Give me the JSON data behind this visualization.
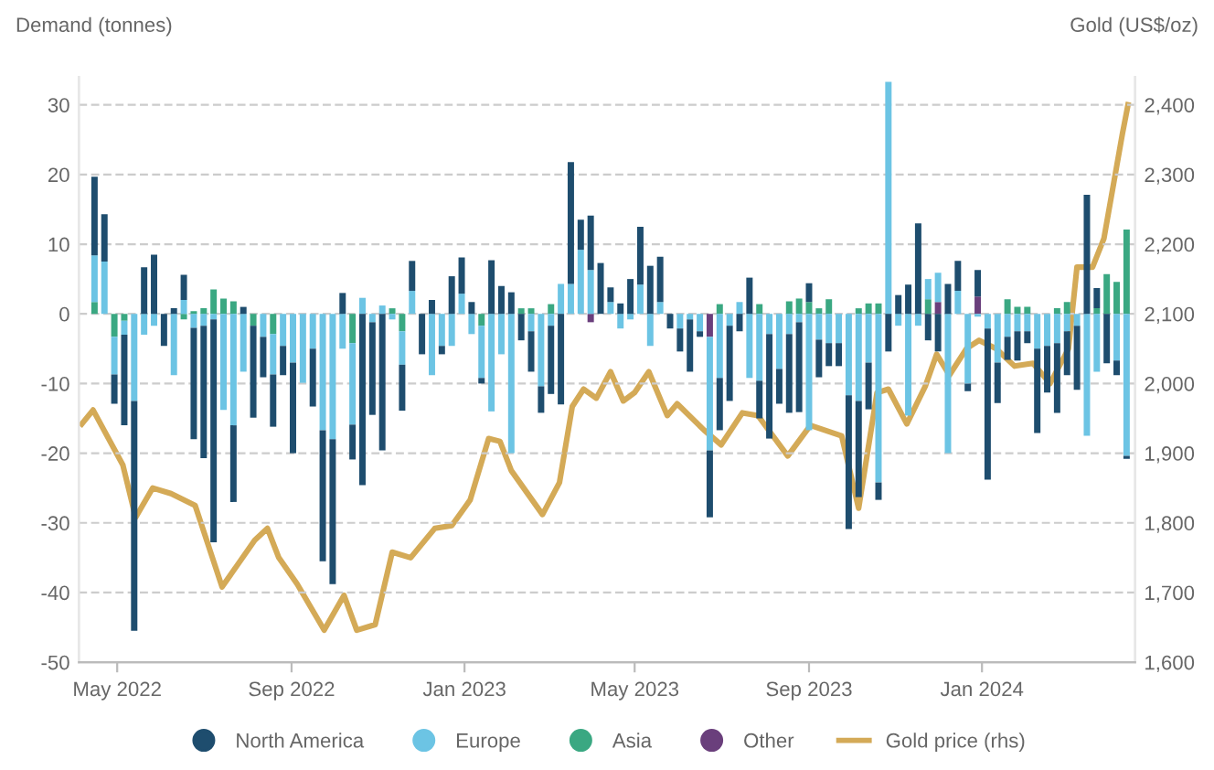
{
  "chart_data": {
    "type": "bar",
    "stacked": true,
    "ylabel": "Demand (tonnes)",
    "y2label": "Gold (US$/oz)",
    "x": [
      "2022-04-15",
      "2022-04-22",
      "2022-04-29",
      "2022-05-06",
      "2022-05-13",
      "2022-05-20",
      "2022-05-27",
      "2022-06-03",
      "2022-06-10",
      "2022-06-17",
      "2022-06-24",
      "2022-07-01",
      "2022-07-08",
      "2022-07-15",
      "2022-07-22",
      "2022-07-29",
      "2022-08-05",
      "2022-08-12",
      "2022-08-19",
      "2022-08-26",
      "2022-09-02",
      "2022-09-09",
      "2022-09-16",
      "2022-09-23",
      "2022-09-30",
      "2022-10-07",
      "2022-10-14",
      "2022-10-21",
      "2022-10-28",
      "2022-11-04",
      "2022-11-11",
      "2022-11-18",
      "2022-11-25",
      "2022-12-02",
      "2022-12-09",
      "2022-12-16",
      "2022-12-23",
      "2022-12-30",
      "2023-01-06",
      "2023-01-13",
      "2023-01-20",
      "2023-01-27",
      "2023-02-03",
      "2023-02-10",
      "2023-02-17",
      "2023-02-24",
      "2023-03-03",
      "2023-03-10",
      "2023-03-17",
      "2023-03-24",
      "2023-03-31",
      "2023-04-07",
      "2023-04-14",
      "2023-04-21",
      "2023-04-28",
      "2023-05-05",
      "2023-05-12",
      "2023-05-19",
      "2023-05-26",
      "2023-06-02",
      "2023-06-09",
      "2023-06-16",
      "2023-06-23",
      "2023-06-30",
      "2023-07-07",
      "2023-07-14",
      "2023-07-21",
      "2023-07-28",
      "2023-08-04",
      "2023-08-11",
      "2023-08-18",
      "2023-08-25",
      "2023-09-01",
      "2023-09-08",
      "2023-09-15",
      "2023-09-22",
      "2023-09-29",
      "2023-10-06",
      "2023-10-13",
      "2023-10-20",
      "2023-10-27",
      "2023-11-03",
      "2023-11-10",
      "2023-11-17",
      "2023-11-24",
      "2023-12-01",
      "2023-12-08",
      "2023-12-15",
      "2023-12-22",
      "2023-12-29",
      "2024-01-05",
      "2024-01-12",
      "2024-01-19",
      "2024-01-26",
      "2024-02-02",
      "2024-02-09",
      "2024-02-16",
      "2024-02-23",
      "2024-03-01",
      "2024-03-08",
      "2024-03-15",
      "2024-03-22",
      "2024-03-29",
      "2024-04-05",
      "2024-04-12"
    ],
    "series": [
      {
        "name": "Other",
        "color": "#6a3f7c",
        "values": [
          0,
          0,
          0,
          0,
          0,
          0,
          0,
          0,
          0,
          0,
          0,
          0,
          0,
          0,
          0,
          0,
          0,
          0,
          0,
          0,
          0,
          0,
          0,
          0,
          0,
          0,
          0,
          0,
          0,
          0,
          0,
          0,
          0,
          0,
          0,
          0,
          0,
          0,
          0,
          0,
          0,
          0,
          0,
          0,
          0,
          0,
          0,
          0,
          0,
          0,
          -1.2,
          0,
          0,
          0,
          0,
          0,
          0,
          0,
          0,
          0,
          0,
          0,
          -3.3,
          0,
          0,
          0,
          0,
          0,
          0,
          0,
          0,
          0,
          0,
          0,
          0,
          0,
          0,
          0,
          0,
          0,
          0,
          0,
          0,
          0,
          0,
          1.7,
          0,
          0,
          0,
          2.5,
          0,
          0,
          0,
          0,
          0,
          0,
          0,
          0,
          0,
          0,
          0,
          0,
          0,
          0,
          0
        ]
      },
      {
        "name": "Asia",
        "color": "#3aa882",
        "values": [
          1.7,
          0,
          -3.3,
          -1,
          0,
          0,
          0,
          0,
          0,
          -0.8,
          0.4,
          0.8,
          3.5,
          2.2,
          1.8,
          0,
          -1.7,
          0,
          -2.9,
          0,
          0,
          0,
          0,
          0,
          0,
          0,
          -4.2,
          0,
          0,
          0,
          0.8,
          -2.5,
          0,
          0,
          0,
          0,
          0,
          0,
          0,
          -1.7,
          0,
          0,
          0,
          0.8,
          0.8,
          0,
          1.4,
          0,
          0,
          0,
          0,
          0,
          0,
          0,
          0,
          0,
          0,
          0,
          0,
          0,
          0,
          0,
          0,
          1.4,
          0,
          0,
          0,
          1.4,
          0,
          0,
          1.8,
          2.2,
          1.7,
          0.8,
          2.1,
          0,
          0,
          0.8,
          1.5,
          1.5,
          0,
          0,
          0,
          0,
          2.1,
          0,
          0,
          0,
          0,
          0,
          0,
          0,
          2.1,
          1,
          1,
          0,
          0,
          0.8,
          1.7,
          0,
          0,
          0.8,
          5.7,
          4.6,
          12.1
        ]
      },
      {
        "name": "Europe",
        "color": "#6cc4e4",
        "values": [
          6.7,
          7.5,
          -5.4,
          -2,
          -12.5,
          -3,
          -1.7,
          0,
          -8.8,
          2,
          -2,
          -1.7,
          -0.8,
          -13.8,
          -16,
          -8.3,
          0,
          -3.3,
          -5.8,
          -4.6,
          -7,
          -9.9,
          -5,
          -16.7,
          -18,
          -5,
          -11.7,
          2.3,
          -1.2,
          1.2,
          -0.8,
          -4.8,
          3.3,
          0,
          -8.8,
          -4.6,
          -4.6,
          2.9,
          -2.9,
          -7.5,
          -14,
          -5.8,
          -20,
          0,
          -2.5,
          -10.4,
          -1.7,
          4.3,
          4.3,
          9.2,
          6.3,
          0,
          1.7,
          -2.1,
          -0.8,
          4.2,
          -4.6,
          1.7,
          0,
          -2.1,
          -0.8,
          -2.5,
          -16.3,
          -9.2,
          -1.7,
          1.7,
          -9.2,
          -9.6,
          -2.9,
          -7.9,
          -2.9,
          -1.2,
          -16.7,
          -3.7,
          -4.2,
          -4.2,
          -11.7,
          -12.5,
          -7,
          -24.2,
          33.3,
          -1.7,
          -14.6,
          -1.7,
          2.9,
          4.2,
          -20,
          3.3,
          -10,
          -0.4,
          -2.1,
          -7,
          -3.3,
          -2.5,
          -2.5,
          -5,
          -4.6,
          -4.2,
          -2.5,
          -1.7,
          -17.5,
          -8.3,
          0,
          -6.7,
          -20.4
        ]
      },
      {
        "name": "North America",
        "color": "#1e4d6e",
        "values": [
          11.3,
          6.8,
          -4.2,
          -13,
          -33,
          6.7,
          8.5,
          -4.6,
          0.8,
          3.6,
          -16,
          -19,
          -32,
          0,
          -11,
          1,
          -13.2,
          -5.8,
          -7.5,
          -4.2,
          -13,
          0,
          -8.3,
          -18.8,
          -20.8,
          3,
          -5,
          -24.6,
          -13.3,
          -19.6,
          0,
          -6.6,
          4.3,
          -5.8,
          2,
          -1.2,
          5.4,
          5.2,
          1.7,
          -0.8,
          7.7,
          4,
          3.1,
          -3.8,
          -5.8,
          -3.8,
          -9.8,
          -13,
          17.5,
          4.3,
          7.8,
          7.3,
          2.1,
          1.5,
          5,
          8.3,
          6.9,
          6.5,
          -2.1,
          -3.3,
          -7.5,
          -0.8,
          -9.6,
          -7.5,
          -10.8,
          -2.5,
          5.2,
          -5.4,
          -15,
          -5,
          -11.3,
          -12.9,
          2.7,
          -5.4,
          -3.3,
          -3.3,
          -19.2,
          -13.8,
          -6.7,
          -2.5,
          -5.4,
          2.7,
          4.2,
          13,
          -3.8,
          -5.4,
          4.3,
          4.3,
          -1.1,
          3.8,
          -21.7,
          -5.8,
          -3.3,
          -4.2,
          -1.7,
          -12.1,
          -6.7,
          -10,
          -6.3,
          -9.2,
          17.1,
          2.9,
          -7.1,
          -2.1,
          -0.4
        ]
      },
      {
        "name": "Gold price (rhs)",
        "type": "line",
        "axis": "y2",
        "color": "#d4aa57",
        "x": [
          "2022-04-06",
          "2022-04-14",
          "2022-05-05",
          "2022-05-14",
          "2022-05-26",
          "2022-06-08",
          "2022-06-25",
          "2022-07-14",
          "2022-08-06",
          "2022-08-15",
          "2022-08-23",
          "2022-09-05",
          "2022-09-24",
          "2022-10-08",
          "2022-10-17",
          "2022-10-30",
          "2022-11-11",
          "2022-11-24",
          "2022-12-11",
          "2022-12-23",
          "2023-01-05",
          "2023-01-18",
          "2023-01-26",
          "2023-02-03",
          "2023-02-25",
          "2023-03-09",
          "2023-03-18",
          "2023-03-26",
          "2023-04-04",
          "2023-04-14",
          "2023-04-23",
          "2023-05-01",
          "2023-05-11",
          "2023-05-24",
          "2023-05-31",
          "2023-06-19",
          "2023-07-01",
          "2023-07-16",
          "2023-07-27",
          "2023-08-17",
          "2023-09-02",
          "2023-09-24",
          "2023-10-06",
          "2023-10-19",
          "2023-10-27",
          "2023-11-09",
          "2023-11-22",
          "2023-11-30",
          "2023-12-09",
          "2023-12-21",
          "2023-12-30",
          "2024-01-11",
          "2024-01-24",
          "2024-02-06",
          "2024-02-18",
          "2024-03-02",
          "2024-03-08",
          "2024-03-19",
          "2024-03-27",
          "2024-04-09",
          "2024-04-13"
        ],
        "values": [
          1942,
          1962,
          1883,
          1808,
          1850,
          1842,
          1825,
          1708,
          1775,
          1792,
          1750,
          1712,
          1646,
          1696,
          1646,
          1654,
          1758,
          1750,
          1792,
          1796,
          1833,
          1921,
          1917,
          1875,
          1812,
          1858,
          1967,
          1992,
          1979,
          2017,
          1975,
          1987,
          2017,
          1954,
          1971,
          1933,
          1912,
          1958,
          1954,
          1896,
          1940,
          1925,
          1821,
          1987,
          1992,
          1942,
          1996,
          2042,
          2012,
          2050,
          2062,
          2050,
          2025,
          2029,
          2000,
          2050,
          2167,
          2167,
          2208,
          2358,
          2400
        ]
      }
    ],
    "xlim": [
      "2022-04-04",
      "2024-04-18"
    ],
    "xticks": [
      {
        "value": "2022-05-01",
        "label": "May 2022"
      },
      {
        "value": "2022-09-01",
        "label": "Sep 2022"
      },
      {
        "value": "2023-01-01",
        "label": "Jan 2023"
      },
      {
        "value": "2023-05-01",
        "label": "May 2023"
      },
      {
        "value": "2023-09-01",
        "label": "Sep 2023"
      },
      {
        "value": "2024-01-01",
        "label": "Jan 2024"
      }
    ],
    "ylim": [
      -50,
      34
    ],
    "yticks": [
      -50,
      -40,
      -30,
      -20,
      -10,
      0,
      10,
      20,
      30
    ],
    "y2lim": [
      1600,
      2440
    ],
    "y2ticks": [
      {
        "value": 1600,
        "label": "1,600"
      },
      {
        "value": 1700,
        "label": "1,700"
      },
      {
        "value": 1800,
        "label": "1,800"
      },
      {
        "value": 1900,
        "label": "1,900"
      },
      {
        "value": 2000,
        "label": "2,000"
      },
      {
        "value": 2100,
        "label": "2,100"
      },
      {
        "value": 2200,
        "label": "2,200"
      },
      {
        "value": 2300,
        "label": "2,300"
      },
      {
        "value": 2400,
        "label": "2,400"
      }
    ],
    "grid": "y",
    "legend": "bottom"
  }
}
